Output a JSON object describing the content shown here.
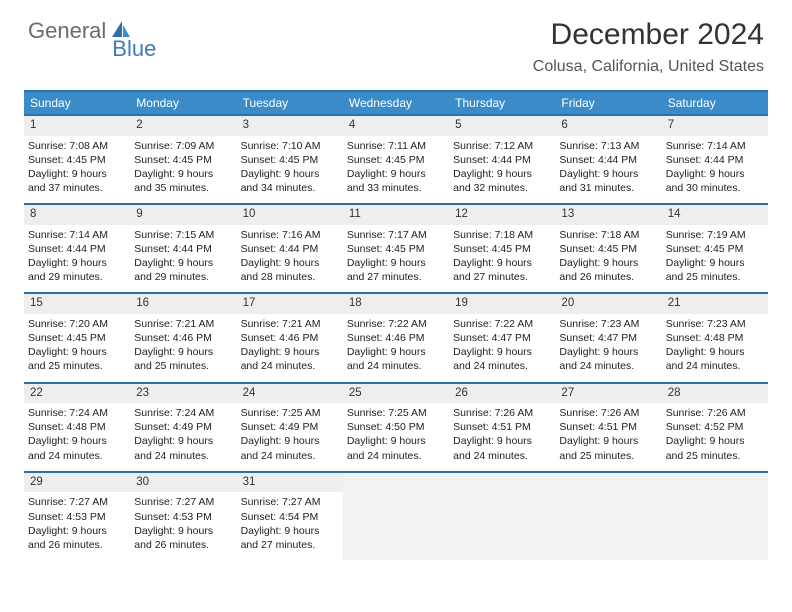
{
  "logo": {
    "part1": "General",
    "part2": "Blue"
  },
  "title": "December 2024",
  "location": "Colusa, California, United States",
  "colors": {
    "header_bg": "#3b8bc9",
    "header_text": "#ffffff",
    "border": "#2f6fa8",
    "daynum_bg": "#eeeeee",
    "empty_bg": "#f2f2f2",
    "logo_gray": "#6b6b6b",
    "logo_blue": "#3b7bbf"
  },
  "weekdays": [
    "Sunday",
    "Monday",
    "Tuesday",
    "Wednesday",
    "Thursday",
    "Friday",
    "Saturday"
  ],
  "weeks": [
    [
      {
        "n": "1",
        "sr": "Sunrise: 7:08 AM",
        "ss": "Sunset: 4:45 PM",
        "d1": "Daylight: 9 hours",
        "d2": "and 37 minutes."
      },
      {
        "n": "2",
        "sr": "Sunrise: 7:09 AM",
        "ss": "Sunset: 4:45 PM",
        "d1": "Daylight: 9 hours",
        "d2": "and 35 minutes."
      },
      {
        "n": "3",
        "sr": "Sunrise: 7:10 AM",
        "ss": "Sunset: 4:45 PM",
        "d1": "Daylight: 9 hours",
        "d2": "and 34 minutes."
      },
      {
        "n": "4",
        "sr": "Sunrise: 7:11 AM",
        "ss": "Sunset: 4:45 PM",
        "d1": "Daylight: 9 hours",
        "d2": "and 33 minutes."
      },
      {
        "n": "5",
        "sr": "Sunrise: 7:12 AM",
        "ss": "Sunset: 4:44 PM",
        "d1": "Daylight: 9 hours",
        "d2": "and 32 minutes."
      },
      {
        "n": "6",
        "sr": "Sunrise: 7:13 AM",
        "ss": "Sunset: 4:44 PM",
        "d1": "Daylight: 9 hours",
        "d2": "and 31 minutes."
      },
      {
        "n": "7",
        "sr": "Sunrise: 7:14 AM",
        "ss": "Sunset: 4:44 PM",
        "d1": "Daylight: 9 hours",
        "d2": "and 30 minutes."
      }
    ],
    [
      {
        "n": "8",
        "sr": "Sunrise: 7:14 AM",
        "ss": "Sunset: 4:44 PM",
        "d1": "Daylight: 9 hours",
        "d2": "and 29 minutes."
      },
      {
        "n": "9",
        "sr": "Sunrise: 7:15 AM",
        "ss": "Sunset: 4:44 PM",
        "d1": "Daylight: 9 hours",
        "d2": "and 29 minutes."
      },
      {
        "n": "10",
        "sr": "Sunrise: 7:16 AM",
        "ss": "Sunset: 4:44 PM",
        "d1": "Daylight: 9 hours",
        "d2": "and 28 minutes."
      },
      {
        "n": "11",
        "sr": "Sunrise: 7:17 AM",
        "ss": "Sunset: 4:45 PM",
        "d1": "Daylight: 9 hours",
        "d2": "and 27 minutes."
      },
      {
        "n": "12",
        "sr": "Sunrise: 7:18 AM",
        "ss": "Sunset: 4:45 PM",
        "d1": "Daylight: 9 hours",
        "d2": "and 27 minutes."
      },
      {
        "n": "13",
        "sr": "Sunrise: 7:18 AM",
        "ss": "Sunset: 4:45 PM",
        "d1": "Daylight: 9 hours",
        "d2": "and 26 minutes."
      },
      {
        "n": "14",
        "sr": "Sunrise: 7:19 AM",
        "ss": "Sunset: 4:45 PM",
        "d1": "Daylight: 9 hours",
        "d2": "and 25 minutes."
      }
    ],
    [
      {
        "n": "15",
        "sr": "Sunrise: 7:20 AM",
        "ss": "Sunset: 4:45 PM",
        "d1": "Daylight: 9 hours",
        "d2": "and 25 minutes."
      },
      {
        "n": "16",
        "sr": "Sunrise: 7:21 AM",
        "ss": "Sunset: 4:46 PM",
        "d1": "Daylight: 9 hours",
        "d2": "and 25 minutes."
      },
      {
        "n": "17",
        "sr": "Sunrise: 7:21 AM",
        "ss": "Sunset: 4:46 PM",
        "d1": "Daylight: 9 hours",
        "d2": "and 24 minutes."
      },
      {
        "n": "18",
        "sr": "Sunrise: 7:22 AM",
        "ss": "Sunset: 4:46 PM",
        "d1": "Daylight: 9 hours",
        "d2": "and 24 minutes."
      },
      {
        "n": "19",
        "sr": "Sunrise: 7:22 AM",
        "ss": "Sunset: 4:47 PM",
        "d1": "Daylight: 9 hours",
        "d2": "and 24 minutes."
      },
      {
        "n": "20",
        "sr": "Sunrise: 7:23 AM",
        "ss": "Sunset: 4:47 PM",
        "d1": "Daylight: 9 hours",
        "d2": "and 24 minutes."
      },
      {
        "n": "21",
        "sr": "Sunrise: 7:23 AM",
        "ss": "Sunset: 4:48 PM",
        "d1": "Daylight: 9 hours",
        "d2": "and 24 minutes."
      }
    ],
    [
      {
        "n": "22",
        "sr": "Sunrise: 7:24 AM",
        "ss": "Sunset: 4:48 PM",
        "d1": "Daylight: 9 hours",
        "d2": "and 24 minutes."
      },
      {
        "n": "23",
        "sr": "Sunrise: 7:24 AM",
        "ss": "Sunset: 4:49 PM",
        "d1": "Daylight: 9 hours",
        "d2": "and 24 minutes."
      },
      {
        "n": "24",
        "sr": "Sunrise: 7:25 AM",
        "ss": "Sunset: 4:49 PM",
        "d1": "Daylight: 9 hours",
        "d2": "and 24 minutes."
      },
      {
        "n": "25",
        "sr": "Sunrise: 7:25 AM",
        "ss": "Sunset: 4:50 PM",
        "d1": "Daylight: 9 hours",
        "d2": "and 24 minutes."
      },
      {
        "n": "26",
        "sr": "Sunrise: 7:26 AM",
        "ss": "Sunset: 4:51 PM",
        "d1": "Daylight: 9 hours",
        "d2": "and 24 minutes."
      },
      {
        "n": "27",
        "sr": "Sunrise: 7:26 AM",
        "ss": "Sunset: 4:51 PM",
        "d1": "Daylight: 9 hours",
        "d2": "and 25 minutes."
      },
      {
        "n": "28",
        "sr": "Sunrise: 7:26 AM",
        "ss": "Sunset: 4:52 PM",
        "d1": "Daylight: 9 hours",
        "d2": "and 25 minutes."
      }
    ],
    [
      {
        "n": "29",
        "sr": "Sunrise: 7:27 AM",
        "ss": "Sunset: 4:53 PM",
        "d1": "Daylight: 9 hours",
        "d2": "and 26 minutes."
      },
      {
        "n": "30",
        "sr": "Sunrise: 7:27 AM",
        "ss": "Sunset: 4:53 PM",
        "d1": "Daylight: 9 hours",
        "d2": "and 26 minutes."
      },
      {
        "n": "31",
        "sr": "Sunrise: 7:27 AM",
        "ss": "Sunset: 4:54 PM",
        "d1": "Daylight: 9 hours",
        "d2": "and 27 minutes."
      },
      {
        "empty": true
      },
      {
        "empty": true
      },
      {
        "empty": true
      },
      {
        "empty": true
      }
    ]
  ]
}
